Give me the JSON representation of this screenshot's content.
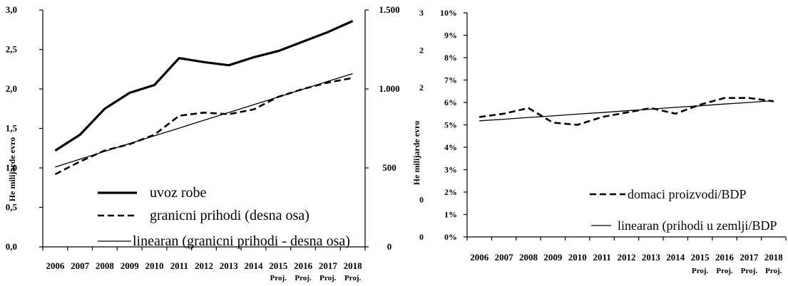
{
  "colors": {
    "background": "#ffffff",
    "line": "#000000",
    "axis": "#000000"
  },
  "chart_data": [
    {
      "type": "line",
      "categories": [
        "2006",
        "2007",
        "2008",
        "2009",
        "2010",
        "2011",
        "2012",
        "2013",
        "2014",
        "2015",
        "2016",
        "2017",
        "2018"
      ],
      "category_sublabels": [
        "",
        "",
        "",
        "",
        "",
        "",
        "",
        "",
        "",
        "Proj.",
        "Proj.",
        "Proj.",
        "Proj."
      ],
      "ylabel": "He milijarde evro",
      "y_axis": {
        "range": [
          0,
          3
        ],
        "ticks": [
          0,
          0.5,
          1,
          1.5,
          2,
          2.5,
          3
        ],
        "tick_labels": [
          "0,0",
          "0,5",
          "1,0",
          "1,5",
          "2,0",
          "2,5",
          "3,0"
        ]
      },
      "y2_axis": {
        "range": [
          0,
          1500
        ],
        "ticks": [
          0,
          500,
          1000,
          1500
        ],
        "tick_labels": [
          "0",
          "500",
          "1.000",
          "1.500"
        ]
      },
      "series": [
        {
          "name": "uvoz robe",
          "axis": "left",
          "line_style": "thick-solid",
          "values": [
            1.22,
            1.42,
            1.75,
            1.95,
            2.05,
            2.39,
            2.34,
            2.3,
            2.4,
            2.48,
            2.6,
            2.72,
            2.86
          ]
        },
        {
          "name": "granicni prihodi (desna osa)",
          "axis": "right",
          "line_style": "dashed",
          "values": [
            460,
            540,
            610,
            650,
            710,
            830,
            850,
            840,
            870,
            950,
            1000,
            1040,
            1070
          ]
        },
        {
          "name": "linearan (granicni prihodi - desna osa)",
          "axis": "right",
          "line_style": "thin-solid",
          "values": [
            506,
            555,
            605,
            654,
            703,
            752,
            802,
            851,
            900,
            949,
            998,
            1048,
            1097
          ]
        }
      ],
      "legend": "inside-bottom-left",
      "grid": false
    },
    {
      "type": "line",
      "categories": [
        "2006",
        "2007",
        "2008",
        "2009",
        "2010",
        "2011",
        "2012",
        "2013",
        "2014",
        "2015",
        "2016",
        "2017",
        "2018"
      ],
      "category_sublabels": [
        "",
        "",
        "",
        "",
        "",
        "",
        "",
        "",
        "",
        "Proj.",
        "Proj.",
        "Proj.",
        "Proj."
      ],
      "ylabel": "He milijarde evro",
      "y_axis": {
        "range": [
          0,
          10
        ],
        "ticks": [
          0,
          1,
          2,
          3,
          4,
          5,
          6,
          7,
          8,
          9,
          10
        ],
        "tick_labels": [
          "0%",
          "1%",
          "2%",
          "3%",
          "4%",
          "5%",
          "6%",
          "7%",
          "8%",
          "9%",
          "10%"
        ]
      },
      "y_axis_outer": {
        "range": [
          0,
          3
        ],
        "ticks": [
          0,
          0.5,
          2,
          2.5,
          3
        ],
        "tick_labels": [
          "0",
          "0",
          "2",
          "2",
          "3"
        ]
      },
      "series": [
        {
          "name": "domaci proizvodi/BDP",
          "axis": "left",
          "line_style": "dashed",
          "values": [
            5.35,
            5.5,
            5.75,
            5.1,
            5.0,
            5.35,
            5.55,
            5.75,
            5.5,
            5.9,
            6.2,
            6.2,
            6.05
          ]
        },
        {
          "name": "linearan (prihodi u zemlji/BDP",
          "axis": "left",
          "line_style": "thin-solid",
          "values": [
            5.18,
            5.25,
            5.33,
            5.4,
            5.48,
            5.55,
            5.63,
            5.7,
            5.78,
            5.85,
            5.93,
            6.0,
            6.08
          ]
        }
      ],
      "legend": "inside-bottom-right",
      "grid": false
    }
  ]
}
